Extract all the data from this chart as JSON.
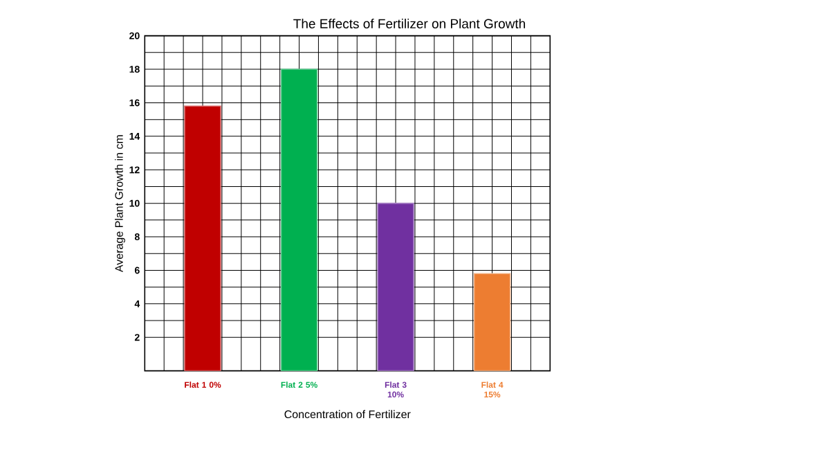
{
  "chart_data": {
    "type": "bar",
    "title": "The Effects of Fertilizer on Plant Growth",
    "xlabel": "Concentration of Fertilizer",
    "ylabel": "Average Plant Growth in cm",
    "categories": [
      "Flat 1 0%",
      "Flat 2 5%",
      "Flat 3 10%",
      "Flat 4 15%"
    ],
    "values": [
      15.8,
      18,
      10,
      5.8
    ],
    "colors": [
      "#c00000",
      "#00b050",
      "#7030a0",
      "#ed7d31"
    ],
    "ylim": [
      0,
      20
    ],
    "yticks": [
      2,
      4,
      6,
      8,
      10,
      12,
      14,
      16,
      18,
      20
    ],
    "grid": true
  }
}
